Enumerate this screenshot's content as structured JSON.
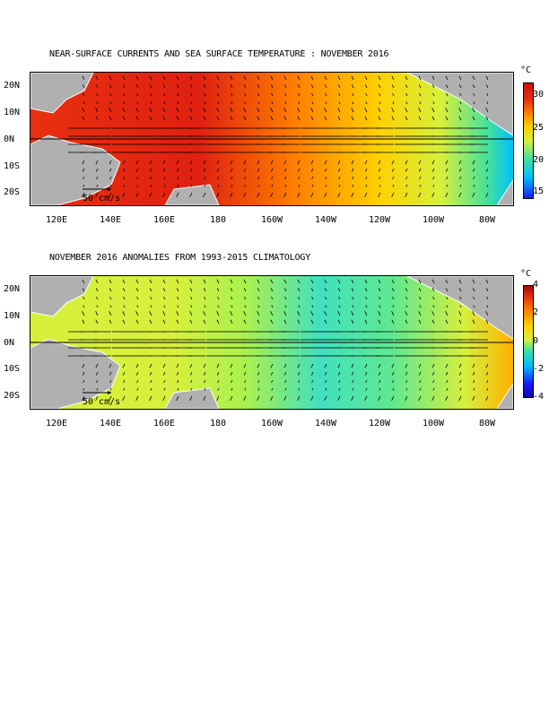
{
  "panels": [
    {
      "title": "NEAR-SURFACE CURRENTS AND SEA SURFACE TEMPERATURE : NOVEMBER 2016",
      "y_ticks": [
        "20N",
        "10N",
        "0N",
        "10S",
        "20S"
      ],
      "x_ticks": [
        "120E",
        "140E",
        "160E",
        "180",
        "160W",
        "140W",
        "120W",
        "100W",
        "80W"
      ],
      "scale_label": "50 cm/s",
      "colorbar": {
        "unit": "°C",
        "ticks": [
          "30",
          "25",
          "20",
          "15"
        ],
        "range": [
          13,
          32
        ]
      },
      "colors": [
        "#1a1aff",
        "#00bfff",
        "#40e0a0",
        "#d6f03c",
        "#ffd000",
        "#ff8000",
        "#e83010",
        "#cc1010"
      ]
    },
    {
      "title": "NOVEMBER 2016 ANOMALIES FROM 1993-2015 CLIMATOLOGY",
      "y_ticks": [
        "20N",
        "10N",
        "0N",
        "10S",
        "20S"
      ],
      "x_ticks": [
        "120E",
        "140E",
        "160E",
        "180",
        "160W",
        "140W",
        "120W",
        "100W",
        "80W"
      ],
      "scale_label": "50 cm/s",
      "colorbar": {
        "unit": "°C",
        "ticks": [
          "4",
          "2",
          "0",
          "-2",
          "-4"
        ],
        "range": [
          -4,
          4
        ]
      },
      "colors": [
        "#1a1aff",
        "#00bfff",
        "#40e0a0",
        "#d6f03c",
        "#ffd000",
        "#ff8000",
        "#e83010",
        "#cc1010"
      ]
    }
  ],
  "map_info": {
    "lon_range": [
      110,
      290
    ],
    "lat_range": [
      -25,
      25
    ],
    "land_color": "#b0b0b0"
  }
}
